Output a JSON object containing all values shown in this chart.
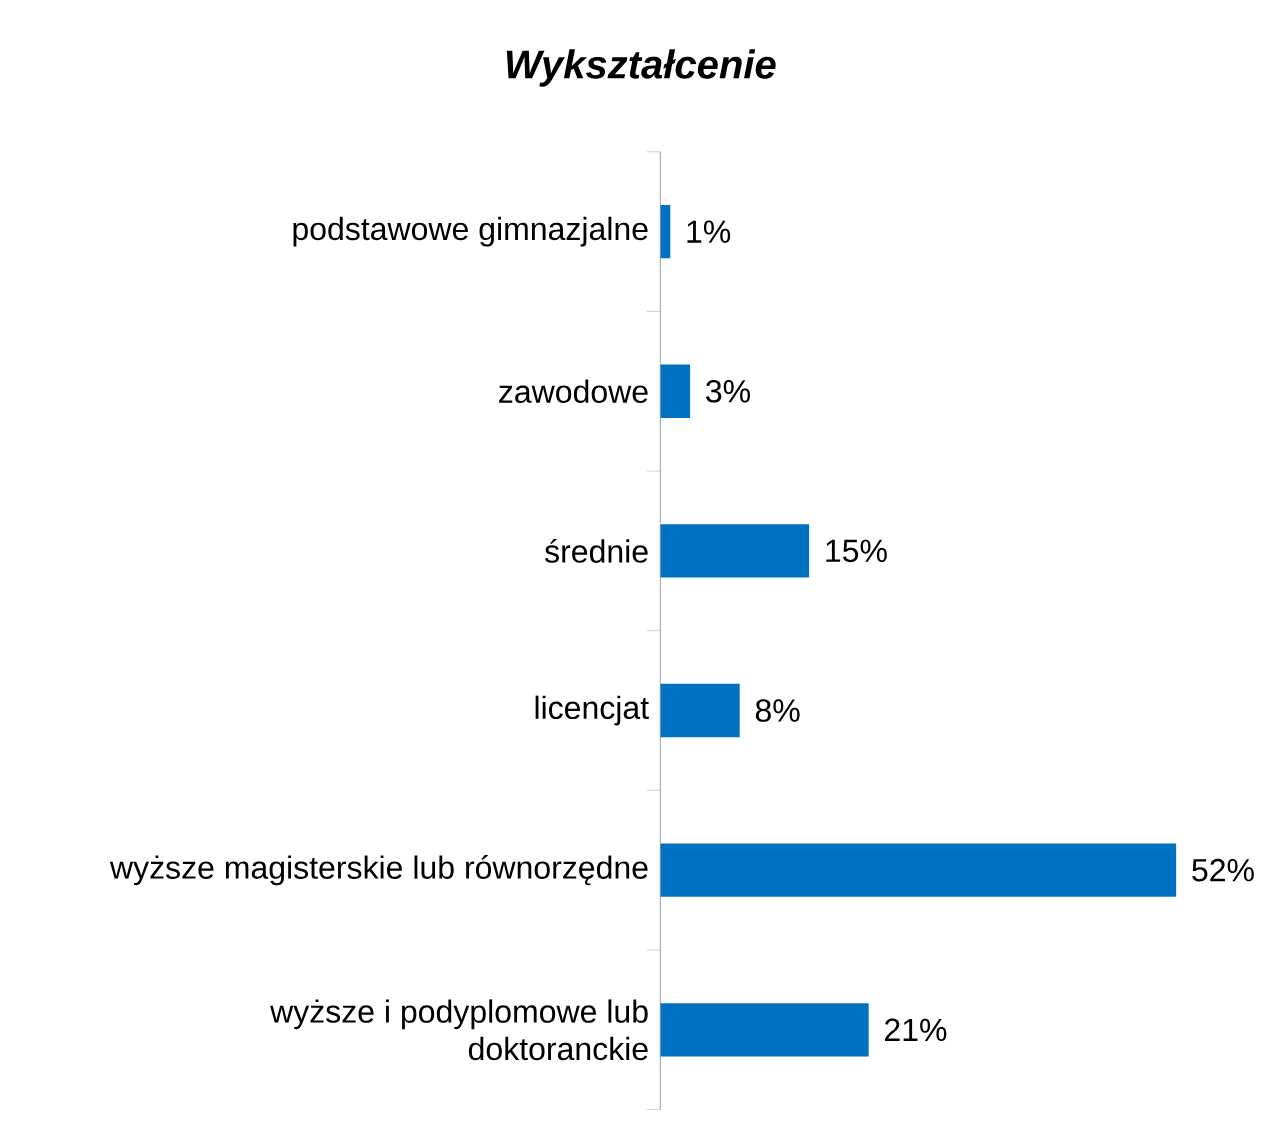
{
  "chart_data": {
    "type": "bar",
    "orientation": "horizontal",
    "title": "*Wykształcenie*",
    "categories": [
      "podstawowe gimnazjalne",
      "zawodowe",
      "średnie",
      "licencjat",
      "wyższe magisterskie lub równorzędne",
      "wyższe i podyplomowe lub doktoranckie"
    ],
    "values": [
      1,
      3,
      15,
      8,
      52,
      21
    ],
    "value_labels": [
      "1%",
      "3%",
      "15%",
      "8%",
      "52%",
      "21%"
    ],
    "color": "#0070c0",
    "grid": false
  }
}
